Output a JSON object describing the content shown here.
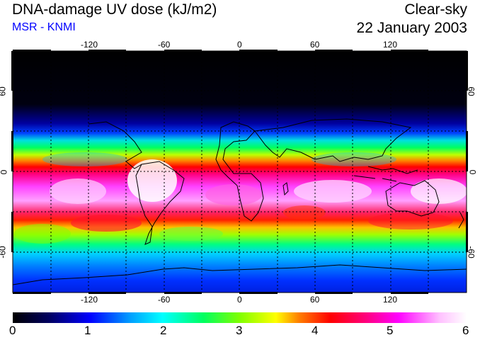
{
  "title": "DNA-damage UV dose (kJ/m2)",
  "subtitle": "MSR - KNMI",
  "condition": "Clear-sky",
  "date": "22 January 2003",
  "map": {
    "lon_ticks": [
      "-120",
      "-60",
      "0",
      "60",
      "120"
    ],
    "lat_ticks_left": [
      "60",
      "0",
      "-60"
    ],
    "lat_ticks_right": [
      "60",
      "0",
      "-60"
    ]
  },
  "colorbar": {
    "labels": [
      "0",
      "1",
      "2",
      "3",
      "4",
      "5",
      "6"
    ],
    "min": 0,
    "max": 6,
    "stops": [
      "#000000",
      "#000060",
      "#0000ff",
      "#00a0ff",
      "#00ffff",
      "#00ff60",
      "#80ff00",
      "#ffff00",
      "#ff8000",
      "#ff0000",
      "#ff0080",
      "#ff00ff",
      "#ffc0ff",
      "#ffffff"
    ]
  }
}
